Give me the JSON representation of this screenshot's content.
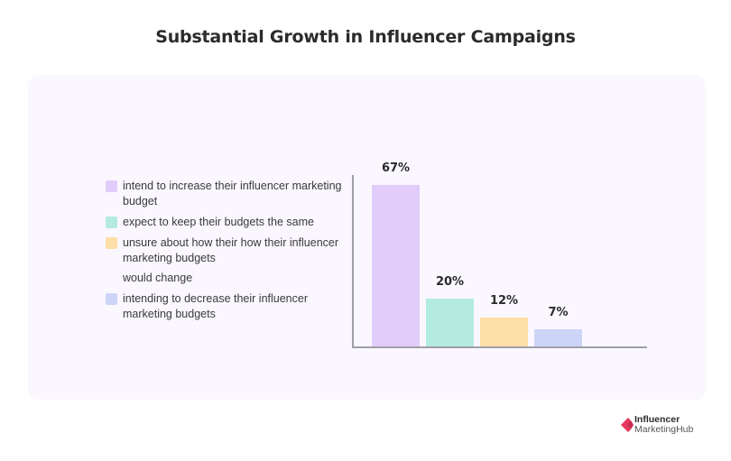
{
  "title": "Substantial Growth in Influencer Campaigns",
  "legend": {
    "items": [
      {
        "label": "intend to increase their influencer marketing budget",
        "color": "#e2ccfb"
      },
      {
        "label": "expect to keep their budgets the same",
        "color": "#b3ecdf"
      },
      {
        "label": "unsure about how their how their influencer marketing budgets",
        "color": "#ffdfa8"
      },
      {
        "label": "would change",
        "color": null
      },
      {
        "label": "intending to decrease their influencer marketing budgets",
        "color": "#ccd5f8"
      }
    ]
  },
  "chart_data": {
    "type": "bar",
    "title": "Substantial Growth in Influencer Campaigns",
    "categories": [
      "intend to increase their influencer marketing budget",
      "expect to keep their budgets the same",
      "unsure about how their influencer marketing budgets would change",
      "intending to decrease their influencer marketing budgets"
    ],
    "values": [
      67,
      20,
      12,
      7
    ],
    "value_labels": [
      "67%",
      "20%",
      "12%",
      "7%"
    ],
    "colors": [
      "#e2ccfb",
      "#b3ecdf",
      "#ffdfa8",
      "#ccd5f8"
    ],
    "xlabel": "",
    "ylabel": "",
    "unit": "%",
    "grid": false,
    "legend_position": "left",
    "ylim": [
      0,
      72
    ]
  },
  "logo": {
    "line1": "Influencer",
    "line2": "MarketingHub",
    "color": "#e8385f"
  }
}
